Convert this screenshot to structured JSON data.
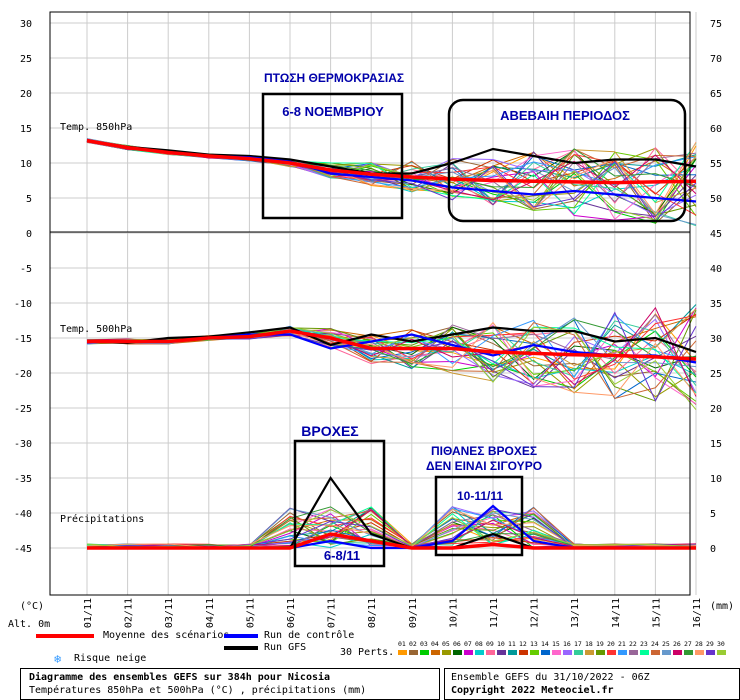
{
  "chart_data": {
    "type": "line",
    "x_ticks": [
      "01/11",
      "02/11",
      "03/11",
      "04/11",
      "05/11",
      "06/11",
      "07/11",
      "08/11",
      "09/11",
      "10/11",
      "11/11",
      "12/11",
      "13/11",
      "14/11",
      "15/11",
      "16/11"
    ],
    "left_axis_labels": [
      "30",
      "25",
      "20",
      "15",
      "10",
      "5",
      "0",
      "-5",
      "-10",
      "-15",
      "-20",
      "-25",
      "-30",
      "-35",
      "-40",
      "-45"
    ],
    "right_axis_labels": [
      "75",
      "70",
      "65",
      "60",
      "55",
      "50",
      "45",
      "40",
      "35",
      "30",
      "25",
      "20",
      "15",
      "10",
      "5",
      "0"
    ],
    "left_axis_unit": "(°C)",
    "right_axis_unit": "(mm)",
    "altitude_label": "Alt. 0m",
    "panel_labels": {
      "t850": "Temp. 850hPa",
      "t500": "Temp. 500hPa",
      "precip": "Précipitations"
    },
    "series_t850": [
      {
        "name": "Moyenne des scénarios",
        "color": "#ff0000",
        "values": [
          13.2,
          12.2,
          11.5,
          11.0,
          10.6,
          10.0,
          9.0,
          8.4,
          8.0,
          7.7,
          7.5,
          7.4,
          7.3,
          7.2,
          7.3,
          7.4
        ]
      },
      {
        "name": "Run de contrôle",
        "color": "#0000ff",
        "values": [
          13.2,
          12.2,
          11.4,
          11.0,
          10.8,
          10.2,
          8.5,
          8.0,
          7.5,
          6.5,
          6.0,
          5.5,
          6.0,
          5.5,
          5.0,
          4.5
        ]
      },
      {
        "name": "Run GFS",
        "color": "#000000",
        "values": [
          13.2,
          12.3,
          11.8,
          11.2,
          11.0,
          10.5,
          9.5,
          8.5,
          8.5,
          10.0,
          12.0,
          11.0,
          10.0,
          10.5,
          10.5,
          9.5
        ]
      }
    ],
    "series_t500": [
      {
        "name": "Moyenne des scénarios",
        "color": "#ff0000",
        "values": [
          -15.5,
          -15.5,
          -15.5,
          -15.0,
          -14.8,
          -14.0,
          -15.0,
          -16.5,
          -16.5,
          -16.5,
          -17.0,
          -17.2,
          -17.4,
          -17.5,
          -17.7,
          -18.0
        ]
      },
      {
        "name": "Run de contrôle",
        "color": "#0000ff",
        "values": [
          -15.5,
          -15.5,
          -15.5,
          -15.0,
          -14.5,
          -14.5,
          -16.5,
          -15.5,
          -14.5,
          -16.0,
          -17.5,
          -16.0,
          -17.0,
          -17.5,
          -17.5,
          -18.5
        ]
      },
      {
        "name": "Run GFS",
        "color": "#000000",
        "values": [
          -15.5,
          -15.7,
          -15.0,
          -14.8,
          -14.2,
          -13.5,
          -16.0,
          -14.5,
          -15.5,
          -14.5,
          -13.5,
          -14.0,
          -14.0,
          -15.5,
          -15.0,
          -17.0
        ]
      }
    ],
    "series_precip_mm": [
      {
        "name": "Moyenne des scénarios",
        "color": "#ff0000",
        "values": [
          0,
          0,
          0,
          0,
          0,
          0,
          2,
          1,
          0,
          0,
          0.5,
          0,
          0,
          0,
          0,
          0
        ]
      },
      {
        "name": "Run de contrôle",
        "color": "#0000ff",
        "values": [
          0,
          0,
          0,
          0,
          0,
          0,
          1,
          0,
          0,
          1,
          6,
          1,
          0,
          0,
          0,
          0
        ]
      },
      {
        "name": "Run GFS",
        "color": "#000000",
        "values": [
          0,
          0,
          0,
          0,
          0,
          0,
          10,
          2,
          0,
          0,
          2,
          0,
          0,
          0,
          0,
          0
        ]
      }
    ],
    "perturbation_count": 30,
    "perturbations_label": "30 Perts.",
    "perturbation_numbers": [
      "01",
      "02",
      "03",
      "04",
      "05",
      "06",
      "07",
      "08",
      "09",
      "10",
      "11",
      "12",
      "13",
      "14",
      "15",
      "16",
      "17",
      "18",
      "19",
      "20",
      "21",
      "22",
      "23",
      "24",
      "25",
      "26",
      "27",
      "28",
      "29",
      "30"
    ],
    "perturbation_colors": [
      "#ff9900",
      "#996633",
      "#00cc00",
      "#cc6600",
      "#999900",
      "#006600",
      "#cc00cc",
      "#00cccc",
      "#ff6699",
      "#663399",
      "#009999",
      "#cc3300",
      "#66cc00",
      "#0066cc",
      "#ff66cc",
      "#9966ff",
      "#33cc99",
      "#cc9933",
      "#669900",
      "#ff3333",
      "#3399ff",
      "#996699",
      "#00ff99",
      "#cc6633",
      "#6699cc",
      "#cc0066",
      "#339933",
      "#ff9966",
      "#6633cc",
      "#99cc33"
    ],
    "grid": true
  },
  "annotations": {
    "temp_drop_title": "ΠΤΩΣΗ ΘΕΡΜΟΚΡΑΣΙΑΣ",
    "temp_drop_dates": "6-8 ΝΟΕΜΒΡΙΟΥ",
    "uncertain": "ΑΒΕΒΑΙΗ ΠΕΡΙΟΔΟΣ",
    "rain_title": "ΒΡΟΧΕΣ",
    "rain_dates": "6-8/11",
    "possible_rain_1": "ΠΙΘΑΝΕΣ ΒΡΟΧΕΣ",
    "possible_rain_2": "ΔΕΝ ΕΙΝΑΙ ΣΙΓΟΥΡΟ",
    "possible_rain_dates": "10-11/11"
  },
  "legend": {
    "mean": "Moyenne des scénarios",
    "control": "Run de contrôle",
    "gfs": "Run GFS",
    "snow_risk": "Risque neige",
    "mean_color": "#ff0000",
    "control_color": "#0000ff",
    "gfs_color": "#000000"
  },
  "footer": {
    "title": "Diagramme des ensembles GEFS sur 384h pour Nicosia",
    "subtitle": "Températures 850hPa et 500hPa (°C) , précipitations (mm)",
    "run_info": "Ensemble GEFS du 31/10/2022 - 06Z",
    "copyright": "Copyright 2022 Meteociel.fr"
  },
  "colors": {
    "annotation": "#0000aa",
    "grid": "#cccccc"
  }
}
